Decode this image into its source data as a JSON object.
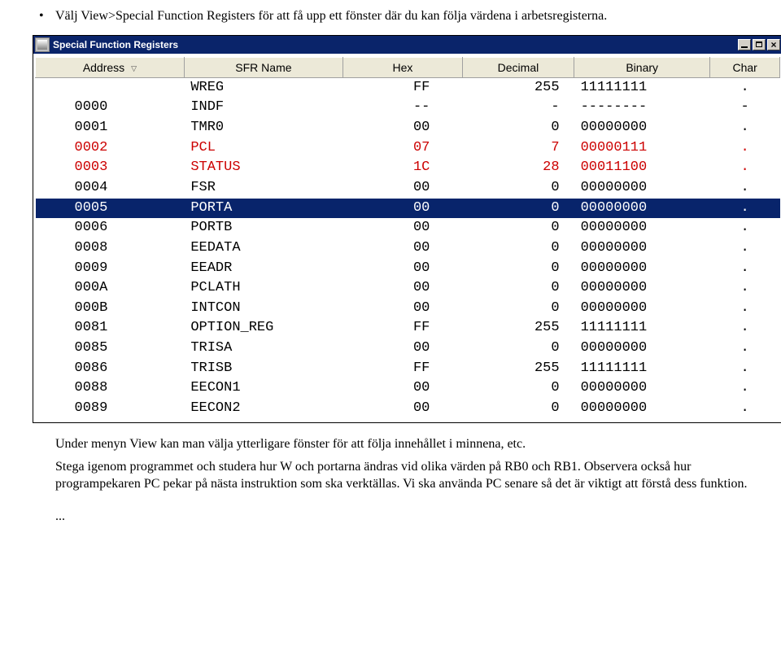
{
  "doc": {
    "bullet": "Välj View>Special Function Registers för att få upp ett fönster där du kan följa värdena i arbetsregisterna.",
    "para1": "Under menyn View kan man välja ytterligare fönster för att följa innehållet i minnena, etc.",
    "para2": "Stega igenom programmet och studera hur W och portarna ändras vid olika värden på RB0 och RB1. Observera också hur programpekaren PC pekar på nästa instruktion som ska verktällas. Vi ska använda PC senare så det är viktigt att förstå dess funktion.",
    "dots": "..."
  },
  "window": {
    "title": "Special Function Registers",
    "columns": [
      "Address",
      "SFR Name",
      "Hex",
      "Decimal",
      "Binary",
      "Char"
    ],
    "sort_glyph": "▽"
  },
  "colors": {
    "changed": "#cc0000",
    "normal": "#000000",
    "selected_bg": "#08246b",
    "selected_fg": "#ffffff"
  },
  "rows": [
    {
      "addr": "",
      "name": "WREG",
      "hex": "FF",
      "dec": "255",
      "bin": "11111111",
      "char": ".",
      "changed": false,
      "selected": false
    },
    {
      "addr": "0000",
      "name": "INDF",
      "hex": "--",
      "dec": "-",
      "bin": "--------",
      "char": "-",
      "changed": false,
      "selected": false
    },
    {
      "addr": "0001",
      "name": "TMR0",
      "hex": "00",
      "dec": "0",
      "bin": "00000000",
      "char": ".",
      "changed": false,
      "selected": false
    },
    {
      "addr": "0002",
      "name": "PCL",
      "hex": "07",
      "dec": "7",
      "bin": "00000111",
      "char": ".",
      "changed": true,
      "selected": false
    },
    {
      "addr": "0003",
      "name": "STATUS",
      "hex": "1C",
      "dec": "28",
      "bin": "00011100",
      "char": ".",
      "changed": true,
      "selected": false
    },
    {
      "addr": "0004",
      "name": "FSR",
      "hex": "00",
      "dec": "0",
      "bin": "00000000",
      "char": ".",
      "changed": false,
      "selected": false
    },
    {
      "addr": "0005",
      "name": "PORTA",
      "hex": "00",
      "dec": "0",
      "bin": "00000000",
      "char": ".",
      "changed": false,
      "selected": true
    },
    {
      "addr": "0006",
      "name": "PORTB",
      "hex": "00",
      "dec": "0",
      "bin": "00000000",
      "char": ".",
      "changed": false,
      "selected": false
    },
    {
      "addr": "0008",
      "name": "EEDATA",
      "hex": "00",
      "dec": "0",
      "bin": "00000000",
      "char": ".",
      "changed": false,
      "selected": false
    },
    {
      "addr": "0009",
      "name": "EEADR",
      "hex": "00",
      "dec": "0",
      "bin": "00000000",
      "char": ".",
      "changed": false,
      "selected": false
    },
    {
      "addr": "000A",
      "name": "PCLATH",
      "hex": "00",
      "dec": "0",
      "bin": "00000000",
      "char": ".",
      "changed": false,
      "selected": false
    },
    {
      "addr": "000B",
      "name": "INTCON",
      "hex": "00",
      "dec": "0",
      "bin": "00000000",
      "char": ".",
      "changed": false,
      "selected": false
    },
    {
      "addr": "0081",
      "name": "OPTION_REG",
      "hex": "FF",
      "dec": "255",
      "bin": "11111111",
      "char": ".",
      "changed": false,
      "selected": false
    },
    {
      "addr": "0085",
      "name": "TRISA",
      "hex": "00",
      "dec": "0",
      "bin": "00000000",
      "char": ".",
      "changed": false,
      "selected": false
    },
    {
      "addr": "0086",
      "name": "TRISB",
      "hex": "FF",
      "dec": "255",
      "bin": "11111111",
      "char": ".",
      "changed": false,
      "selected": false
    },
    {
      "addr": "0088",
      "name": "EECON1",
      "hex": "00",
      "dec": "0",
      "bin": "00000000",
      "char": ".",
      "changed": false,
      "selected": false
    },
    {
      "addr": "0089",
      "name": "EECON2",
      "hex": "00",
      "dec": "0",
      "bin": "00000000",
      "char": ".",
      "changed": false,
      "selected": false
    }
  ]
}
